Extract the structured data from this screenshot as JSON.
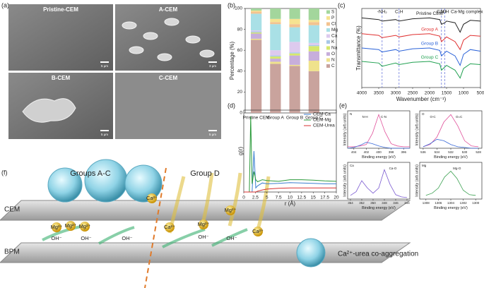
{
  "panel_labels": [
    "(a)",
    "(b)",
    "(c)",
    "(d)",
    "(e)",
    "(f)"
  ],
  "sem": [
    {
      "label": "Pristine-CEM",
      "scale": "5 μm"
    },
    {
      "label": "A-CEM",
      "scale": "3 μm"
    },
    {
      "label": "B-CEM",
      "scale": "5 μm"
    },
    {
      "label": "C-CEM",
      "scale": "5 μm"
    }
  ],
  "chart_data": [
    {
      "type": "bar",
      "ylabel": "Percentage (%)",
      "categories": [
        "Pristine CEM",
        "Group A",
        "Group B",
        "Group C"
      ],
      "ylim": [
        0,
        100
      ],
      "yticks": [
        0,
        20,
        40,
        60,
        80,
        100
      ],
      "legend": "upper right",
      "series": [
        {
          "name": "C",
          "color": "#c9a39d",
          "values": [
            70,
            47,
            45,
            40
          ]
        },
        {
          "name": "N",
          "color": "#efe28c",
          "values": [
            1,
            2,
            1,
            10
          ]
        },
        {
          "name": "O",
          "color": "#c7aedb",
          "values": [
            5,
            3,
            9,
            9
          ]
        },
        {
          "name": "Na",
          "color": "#d6e86c",
          "values": [
            1,
            2,
            2,
            5
          ]
        },
        {
          "name": "K",
          "color": "#a9c8e8",
          "values": [
            1,
            1,
            1,
            1
          ]
        },
        {
          "name": "Ca",
          "color": "#ddcaee",
          "values": [
            1,
            5,
            10,
            2
          ]
        },
        {
          "name": "Mg",
          "color": "#a9e0e6",
          "values": [
            16,
            25,
            14,
            17
          ]
        },
        {
          "name": "Cl",
          "color": "#f3c38f",
          "values": [
            2,
            2,
            3,
            3
          ]
        },
        {
          "name": "P",
          "color": "#f6e391",
          "values": [
            1,
            3,
            5,
            2
          ]
        },
        {
          "name": "S",
          "color": "#a3d69c",
          "values": [
            2,
            10,
            10,
            11
          ]
        }
      ]
    },
    {
      "type": "line",
      "xlabel": "Wavenumber (cm⁻¹)",
      "ylabel": "Transmittance (%)",
      "legend": "inline",
      "x": [
        4000,
        3500,
        3400,
        3000,
        2900,
        2500,
        2000,
        1700,
        1650,
        1550,
        1500,
        1250,
        1100,
        1000,
        800,
        500
      ],
      "xlim": [
        4000,
        500
      ],
      "xticks": [
        4000,
        3500,
        3000,
        2500,
        2000,
        1500,
        1000,
        500
      ],
      "ylim": [
        0,
        100
      ],
      "annotations": [
        {
          "text": "-NH₂",
          "x": 3400,
          "dashed": true
        },
        {
          "text": "C-H",
          "x": 2900,
          "dashed": true
        },
        {
          "text": "C=O",
          "x": 1650,
          "dashed": true
        },
        {
          "text": "N-H",
          "x": 1550,
          "dashed": true
        },
        {
          "text": "Ca-Mg complex",
          "x": 900,
          "dashed": false
        }
      ],
      "series": [
        {
          "name": "Pristine CEM",
          "color": "#222222",
          "values": [
            88,
            86,
            84,
            86,
            84,
            87,
            88,
            86,
            80,
            82,
            84,
            82,
            70,
            80,
            85,
            84
          ]
        },
        {
          "name": "Group A",
          "color": "#e03030",
          "values": [
            68,
            66,
            63,
            66,
            64,
            67,
            68,
            65,
            58,
            62,
            64,
            58,
            48,
            60,
            66,
            65
          ]
        },
        {
          "name": "Group B",
          "color": "#2a62d8",
          "values": [
            50,
            48,
            45,
            48,
            46,
            49,
            50,
            47,
            40,
            44,
            46,
            40,
            28,
            42,
            48,
            46
          ]
        },
        {
          "name": "Group C",
          "color": "#20a050",
          "values": [
            33,
            31,
            27,
            31,
            29,
            32,
            33,
            30,
            22,
            26,
            28,
            22,
            12,
            24,
            30,
            29
          ]
        }
      ]
    },
    {
      "type": "line",
      "xlabel": "r (Å)",
      "ylabel": "g(r)",
      "legend": "upper right",
      "x": [
        0,
        1.2,
        1.5,
        1.8,
        2.2,
        2.6,
        3,
        4,
        5,
        7.5,
        10,
        12.5,
        15,
        17.5,
        20
      ],
      "xlim": [
        0,
        20
      ],
      "xticks": [
        0,
        2.5,
        5,
        7.5,
        10,
        12.5,
        15,
        17.5,
        20
      ],
      "ylim": [
        0,
        20
      ],
      "series": [
        {
          "name": "CEM-Ca",
          "color": "#3b7fd0",
          "values": [
            0,
            0,
            0,
            0,
            10,
            1,
            1.5,
            2.2,
            2,
            2.1,
            2.3,
            2.2,
            2.1,
            2,
            2
          ]
        },
        {
          "name": "CEM-Mg",
          "color": "#2a9a3a",
          "values": [
            0,
            0,
            18.5,
            2,
            5,
            3,
            2.5,
            3,
            2.8,
            2.6,
            3,
            3,
            2.9,
            2.7,
            2.6
          ]
        },
        {
          "name": "CEM-Urea",
          "color": "#d83030",
          "values": [
            0,
            0,
            0,
            0,
            0,
            0,
            0.2,
            0.5,
            0.7,
            0.9,
            1,
            1,
            1,
            1,
            1
          ]
        }
      ]
    },
    {
      "type": "line",
      "title": "N",
      "xlabel": "Binding energy (eV)",
      "ylabel": "Intensity (arb.units)",
      "x": [
        405,
        404,
        403,
        402,
        401,
        400,
        399,
        398,
        397,
        396,
        395
      ],
      "xlim": [
        405,
        395
      ],
      "xticks": [
        404,
        402,
        400,
        398,
        396
      ],
      "ylim": [
        0,
        50
      ],
      "annotations": [
        {
          "text": "C-N",
          "x": 399.2,
          "dashed": false
        },
        {
          "text": "N-H",
          "x": 402.2,
          "dashed": false
        }
      ],
      "series": [
        {
          "color": "#e0509a",
          "values": [
            2,
            2,
            3,
            5,
            20,
            45,
            22,
            6,
            3,
            2,
            2
          ]
        },
        {
          "color": "#3a6ad8",
          "values": [
            0,
            1,
            4,
            8,
            6,
            3,
            1,
            0,
            0,
            0,
            0
          ]
        }
      ]
    },
    {
      "type": "line",
      "title": "O",
      "xlabel": "Binding energy (eV)",
      "ylabel": "Intensity (arb.units)",
      "x": [
        536,
        535,
        534,
        533,
        532,
        531,
        530,
        529,
        528
      ],
      "xlim": [
        536.5,
        527.5
      ],
      "xticks": [
        536,
        534,
        532,
        530,
        528
      ],
      "ylim": [
        0,
        50
      ],
      "annotations": [
        {
          "text": "O=C",
          "x": 530.8,
          "dashed": false
        },
        {
          "text": "O-C",
          "x": 534.6,
          "dashed": false
        }
      ],
      "series": [
        {
          "color": "#e0509a",
          "values": [
            2,
            5,
            15,
            35,
            45,
            30,
            10,
            3,
            2
          ]
        },
        {
          "color": "#3a6ad8",
          "values": [
            2,
            6,
            12,
            10,
            5,
            2,
            1,
            0,
            0
          ]
        }
      ]
    },
    {
      "type": "line",
      "title": "Ca",
      "xlabel": "Binding energy (eV)",
      "ylabel": "Intensity (arb.units)",
      "x": [
        354,
        353,
        352,
        351,
        350,
        349,
        348,
        347,
        346,
        345,
        344
      ],
      "xlim": [
        354.5,
        343.5
      ],
      "xticks": [
        354,
        352,
        350,
        348,
        346,
        344
      ],
      "ylim": [
        0,
        50
      ],
      "annotations": [
        {
          "text": "Ca-O",
          "x": 346.5,
          "dashed": false
        }
      ],
      "series": [
        {
          "color": "#7a5ad0",
          "values": [
            5,
            10,
            25,
            15,
            8,
            15,
            40,
            20,
            6,
            3,
            2
          ]
        }
      ]
    },
    {
      "type": "line",
      "title": "Mg",
      "xlabel": "Binding energy (eV)",
      "ylabel": "Intensity (arb.units)",
      "x": [
        1308,
        1307,
        1306,
        1305,
        1304,
        1303,
        1302,
        1301,
        1300
      ],
      "xlim": [
        1309,
        1299
      ],
      "xticks": [
        1308,
        1306,
        1304,
        1302,
        1300
      ],
      "ylim": [
        0,
        50
      ],
      "annotations": [
        {
          "text": "Mg-O",
          "x": 1303,
          "dashed": false
        }
      ],
      "series": [
        {
          "color": "#3aa050",
          "values": [
            5,
            8,
            15,
            30,
            38,
            28,
            12,
            6,
            5
          ]
        }
      ]
    }
  ],
  "schematic": {
    "groups_ac": "Groups A-C",
    "group_d": "Group D",
    "cem": "CEM",
    "bpm": "BPM",
    "ions": {
      "mg": "Mg²⁺",
      "ca": "Ca²⁺",
      "oh": "OH⁻"
    },
    "legend": "Ca²⁺-urea co-aggregation"
  }
}
